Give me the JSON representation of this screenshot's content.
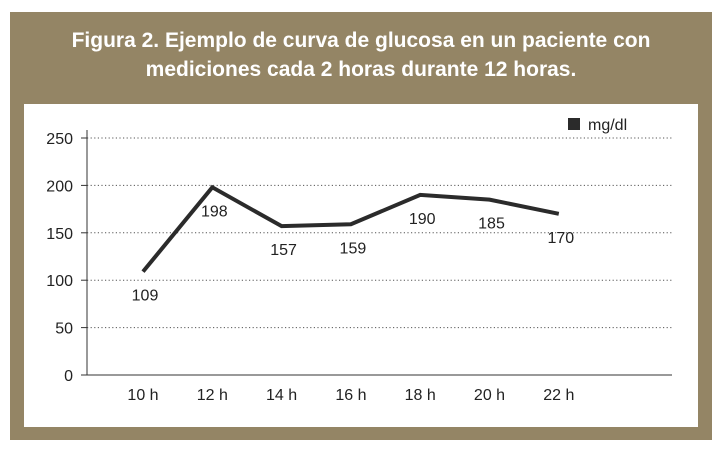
{
  "header": {
    "title_line1": "Figura 2. Ejemplo de curva de glucosa en un paciente con",
    "title_line2": "mediciones cada 2 horas durante 12 horas."
  },
  "colors": {
    "frame": "#948565",
    "line": "#2b2b2b",
    "grid": "#555555"
  },
  "chart_data": {
    "type": "line",
    "title": "Figura 2. Ejemplo de curva de glucosa en un paciente con mediciones cada 2 horas durante 12 horas.",
    "categories": [
      "10 h",
      "12 h",
      "14 h",
      "16 h",
      "18 h",
      "20 h",
      "22 h"
    ],
    "series": [
      {
        "name": "mg/dl",
        "values": [
          109,
          198,
          157,
          159,
          190,
          185,
          170
        ]
      }
    ],
    "data_labels": [
      "109",
      "198",
      "157",
      "159",
      "190",
      "185",
      "170"
    ],
    "yticks": [
      0,
      50,
      100,
      150,
      200,
      250
    ],
    "ylim": [
      0,
      250
    ],
    "xlabel": "",
    "ylabel": "",
    "grid": "horizontal-dotted",
    "legend": "top-right"
  }
}
